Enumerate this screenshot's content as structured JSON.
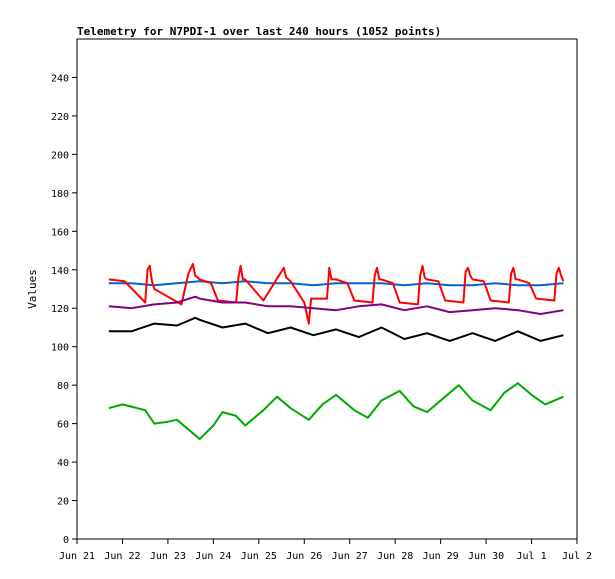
{
  "chart_data": {
    "type": "line",
    "title": "Telemetry for N7PDI-1 over last 240 hours (1052 points)",
    "xlabel": "",
    "ylabel": "Values",
    "xlim": [
      "Jun 21",
      "Jul 2"
    ],
    "ylim": [
      0,
      260
    ],
    "x_ticks": [
      "Jun 21",
      "Jun 22",
      "Jun 23",
      "Jun 24",
      "Jun 25",
      "Jun 26",
      "Jun 27",
      "Jun 28",
      "Jun 29",
      "Jun 30",
      "Jul 1",
      "Jul 2"
    ],
    "y_ticks": [
      0,
      20,
      40,
      60,
      80,
      100,
      120,
      140,
      160,
      180,
      200,
      220,
      240
    ],
    "grid": false,
    "legend": "none",
    "series": [
      {
        "color": "#0066cc",
        "x": [
          21.7,
          22.2,
          22.7,
          23.2,
          23.7,
          24.2,
          24.7,
          25.2,
          25.7,
          26.2,
          26.7,
          27.2,
          27.7,
          28.2,
          28.7,
          29.2,
          29.7,
          30.2,
          30.7,
          31.2,
          31.7
        ],
        "y": [
          133,
          133,
          132,
          133,
          134,
          133,
          134,
          133,
          133,
          132,
          133,
          133,
          133,
          132,
          133,
          132,
          132,
          133,
          132,
          132,
          133
        ]
      },
      {
        "color": "#ff0000",
        "x": [
          21.7,
          22.05,
          22.5,
          22.55,
          22.6,
          22.65,
          22.7,
          23.3,
          23.45,
          23.55,
          23.6,
          23.65,
          23.7,
          23.95,
          24.1,
          24.5,
          24.55,
          24.6,
          24.65,
          24.7,
          25.1,
          25.55,
          25.6,
          25.65,
          25.7,
          26.0,
          26.1,
          26.15,
          26.2,
          26.5,
          26.55,
          26.6,
          26.7,
          26.95,
          27.1,
          27.5,
          27.55,
          27.6,
          27.65,
          27.7,
          27.95,
          28.1,
          28.5,
          28.55,
          28.6,
          28.65,
          28.7,
          28.95,
          29.1,
          29.5,
          29.55,
          29.6,
          29.65,
          29.7,
          29.95,
          30.1,
          30.5,
          30.55,
          30.6,
          30.65,
          30.7,
          30.95,
          31.1,
          31.5,
          31.55,
          31.6,
          31.65,
          31.7
        ],
        "y": [
          135,
          134,
          123,
          140,
          142,
          134,
          130,
          122,
          138,
          143,
          137,
          136,
          135,
          133,
          124,
          123,
          136,
          142,
          135,
          135,
          124,
          141,
          136,
          135,
          134,
          123,
          112,
          125,
          125,
          125,
          141,
          135,
          135,
          133,
          124,
          123,
          137,
          141,
          135,
          135,
          133,
          123,
          122,
          137,
          142,
          136,
          135,
          134,
          124,
          123,
          139,
          141,
          137,
          135,
          134,
          124,
          123,
          138,
          141,
          135,
          135,
          133,
          125,
          124,
          138,
          141,
          137,
          134
        ]
      },
      {
        "color": "#800080",
        "x": [
          21.7,
          22.2,
          22.7,
          23.2,
          23.6,
          23.7,
          24.2,
          24.7,
          25.2,
          25.7,
          26.2,
          26.7,
          27.2,
          27.7,
          28.2,
          28.7,
          29.2,
          29.7,
          30.2,
          30.7,
          31.2,
          31.7
        ],
        "y": [
          121,
          120,
          122,
          123,
          126,
          125,
          123,
          123,
          121,
          121,
          120,
          119,
          121,
          122,
          119,
          121,
          118,
          119,
          120,
          119,
          117,
          119
        ]
      },
      {
        "color": "#000000",
        "x": [
          21.7,
          22.2,
          22.7,
          23.2,
          23.6,
          23.7,
          24.2,
          24.7,
          25.2,
          25.7,
          26.2,
          26.7,
          27.2,
          27.7,
          28.2,
          28.7,
          29.2,
          29.7,
          30.2,
          30.7,
          31.2,
          31.7
        ],
        "y": [
          108,
          108,
          112,
          111,
          115,
          114,
          110,
          112,
          107,
          110,
          106,
          109,
          105,
          110,
          104,
          107,
          103,
          107,
          103,
          108,
          103,
          106
        ]
      },
      {
        "color": "#00aa00",
        "x": [
          21.7,
          22.0,
          22.5,
          22.7,
          23.0,
          23.2,
          23.5,
          23.7,
          24.0,
          24.2,
          24.5,
          24.7,
          25.1,
          25.4,
          25.7,
          26.1,
          26.4,
          26.7,
          27.1,
          27.4,
          27.7,
          28.1,
          28.4,
          28.7,
          29.1,
          29.4,
          29.7,
          30.1,
          30.4,
          30.7,
          31.0,
          31.3,
          31.7
        ],
        "y": [
          68,
          70,
          67,
          60,
          61,
          62,
          56,
          52,
          59,
          66,
          64,
          59,
          67,
          74,
          68,
          62,
          70,
          75,
          67,
          63,
          72,
          77,
          69,
          66,
          74,
          80,
          72,
          67,
          76,
          81,
          75,
          70,
          74
        ]
      }
    ]
  }
}
